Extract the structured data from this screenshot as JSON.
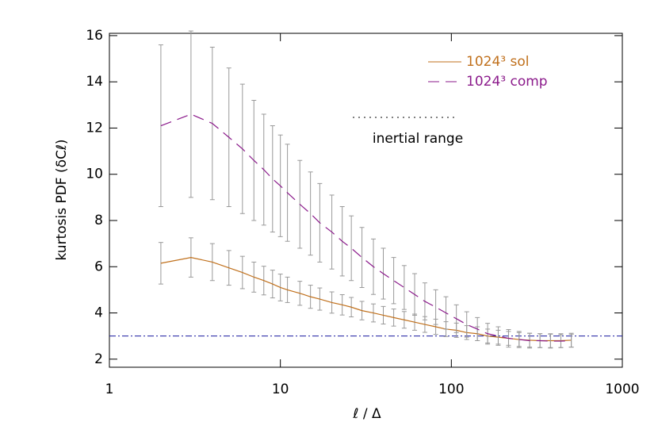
{
  "chart_data": {
    "type": "line",
    "xlabel": "ℓ / Δ",
    "ylabel": "kurtosis PDF (δCℓ)",
    "log_x": true,
    "xlim": [
      1,
      1000
    ],
    "xticks": [
      1,
      10,
      100,
      1000
    ],
    "ylim": [
      1.65,
      16.1
    ],
    "yticks": [
      2,
      4,
      6,
      8,
      10,
      12,
      14,
      16
    ],
    "x": [
      2,
      3,
      4,
      5,
      6,
      7,
      8,
      9,
      10,
      11,
      13,
      15,
      17,
      20,
      23,
      26,
      30,
      35,
      40,
      46,
      53,
      61,
      70,
      81,
      93,
      107,
      123,
      142,
      163,
      188,
      216,
      249,
      287,
      330,
      380,
      437,
      503
    ],
    "series": [
      {
        "name": "1024³  sol",
        "color": "#c0701c",
        "dash": "solid",
        "values": [
          6.15,
          6.4,
          6.2,
          5.95,
          5.75,
          5.55,
          5.4,
          5.25,
          5.1,
          5.0,
          4.85,
          4.7,
          4.6,
          4.45,
          4.35,
          4.25,
          4.1,
          4.0,
          3.9,
          3.8,
          3.7,
          3.6,
          3.5,
          3.4,
          3.3,
          3.25,
          3.15,
          3.1,
          3.0,
          2.95,
          2.9,
          2.85,
          2.82,
          2.8,
          2.8,
          2.8,
          2.82
        ],
        "errors": [
          0.9,
          0.85,
          0.8,
          0.75,
          0.7,
          0.65,
          0.62,
          0.6,
          0.58,
          0.55,
          0.52,
          0.5,
          0.48,
          0.46,
          0.44,
          0.42,
          0.4,
          0.39,
          0.38,
          0.37,
          0.36,
          0.35,
          0.34,
          0.33,
          0.32,
          0.31,
          0.3,
          0.3,
          0.3,
          0.3,
          0.3,
          0.3,
          0.3,
          0.3,
          0.3,
          0.3,
          0.3
        ]
      },
      {
        "name": "1024³  comp",
        "color": "#8b1a8b",
        "dash": "dashed",
        "values": [
          12.1,
          12.6,
          12.2,
          11.6,
          11.1,
          10.6,
          10.2,
          9.8,
          9.5,
          9.2,
          8.7,
          8.3,
          7.9,
          7.5,
          7.1,
          6.8,
          6.4,
          6.0,
          5.7,
          5.4,
          5.1,
          4.8,
          4.5,
          4.25,
          4.0,
          3.75,
          3.5,
          3.3,
          3.1,
          3.0,
          2.9,
          2.85,
          2.8,
          2.8,
          2.78,
          2.78,
          2.8
        ],
        "errors": [
          3.5,
          3.6,
          3.3,
          3.0,
          2.8,
          2.6,
          2.4,
          2.3,
          2.2,
          2.1,
          1.9,
          1.8,
          1.7,
          1.6,
          1.5,
          1.4,
          1.3,
          1.2,
          1.1,
          1.0,
          0.95,
          0.9,
          0.8,
          0.75,
          0.7,
          0.6,
          0.55,
          0.5,
          0.45,
          0.4,
          0.38,
          0.35,
          0.32,
          0.3,
          0.3,
          0.28,
          0.28
        ]
      }
    ],
    "error_color": "#999999",
    "reference_line": {
      "value": 3,
      "color": "#1a1aa0"
    },
    "annotation": "inertial range",
    "legend": "upper right"
  }
}
